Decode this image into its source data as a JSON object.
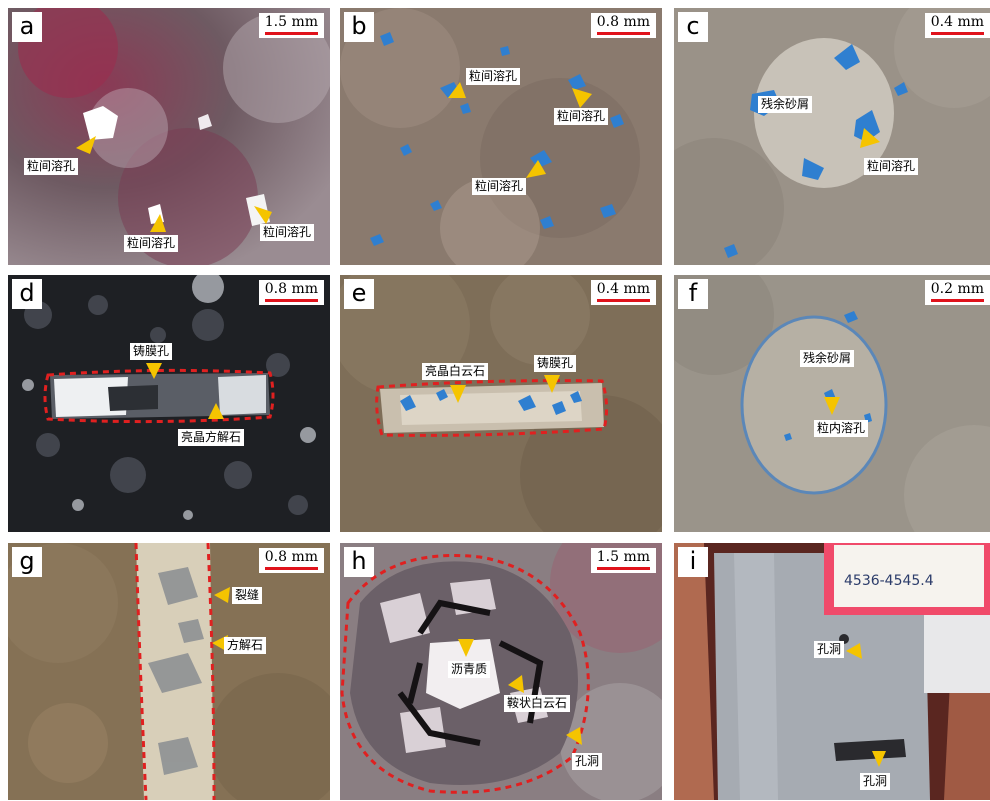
{
  "panels": [
    {
      "letter": "a",
      "scale": "1.5 mm",
      "labels": [
        "粒间溶孔",
        "粒间溶孔",
        "粒间溶孔"
      ]
    },
    {
      "letter": "b",
      "scale": "0.8 mm",
      "labels": [
        "粒间溶孔",
        "粒间溶孔",
        "粒间溶孔"
      ]
    },
    {
      "letter": "c",
      "scale": "0.4 mm",
      "labels": [
        "残余砂屑",
        "粒间溶孔"
      ]
    },
    {
      "letter": "d",
      "scale": "0.8 mm",
      "labels": [
        "铸膜孔",
        "亮晶方解石"
      ]
    },
    {
      "letter": "e",
      "scale": "0.4 mm",
      "labels": [
        "亮晶白云石",
        "铸膜孔"
      ]
    },
    {
      "letter": "f",
      "scale": "0.2 mm",
      "labels": [
        "残余砂屑",
        "粒内溶孔"
      ]
    },
    {
      "letter": "g",
      "scale": "0.8 mm",
      "labels": [
        "裂缝",
        "方解石"
      ]
    },
    {
      "letter": "h",
      "scale": "1.5 mm",
      "labels": [
        "沥青质",
        "鞍状白云石",
        "孔洞"
      ]
    },
    {
      "letter": "i",
      "scale": "",
      "labels": [
        "孔洞",
        "孔洞"
      ],
      "tag_text": "4536-4545.4"
    }
  ],
  "colors": {
    "scale_bar": "#e0121b",
    "arrow": "#f5c400",
    "outline": "#e02020",
    "pore_blue": "#2f7fd0"
  }
}
